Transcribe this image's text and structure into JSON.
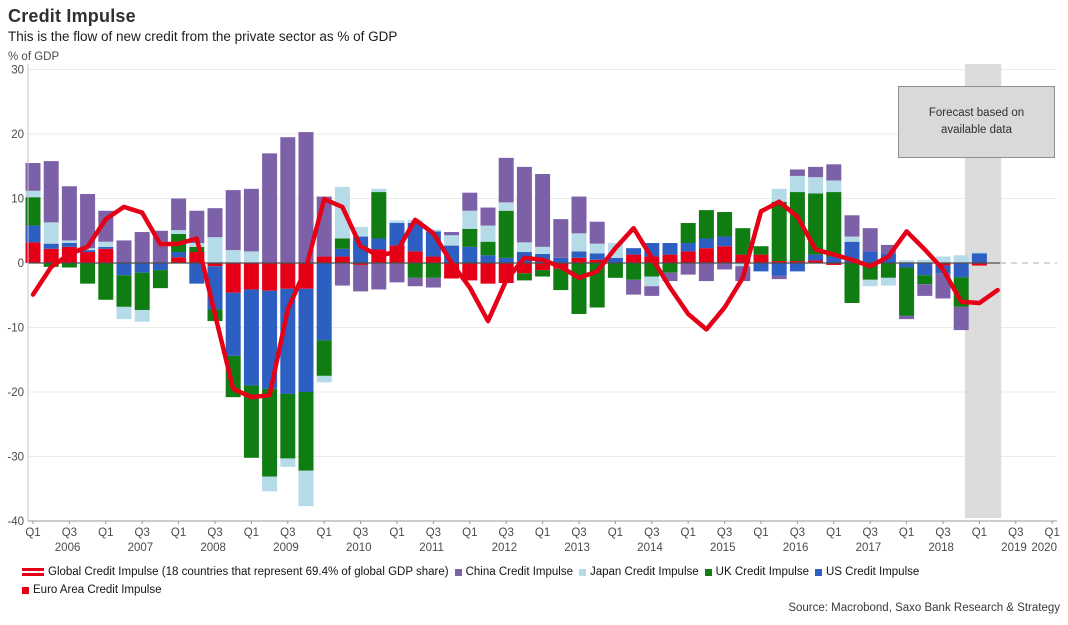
{
  "header": {
    "title": "Credit Impulse",
    "subtitle": "This is the flow of new credit from the private sector as % of GDP"
  },
  "y_axis": {
    "label": "% of GDP",
    "ticks": [
      30,
      20,
      10,
      0,
      -10,
      -20,
      -30,
      -40
    ],
    "min": -40,
    "max": 31
  },
  "x_axis": {
    "quarter_tick_labels": [
      "Q1",
      "Q3"
    ],
    "years": [
      "2006",
      "2007",
      "2008",
      "2009",
      "2010",
      "2011",
      "2012",
      "2013",
      "2014",
      "2015",
      "2016",
      "2017",
      "2018",
      "2019",
      "2020"
    ]
  },
  "forecast": {
    "line1": "Forecast based on",
    "line2": "available data",
    "band_start_index": 51.2,
    "band_end_index": 53.2
  },
  "legend": {
    "row1": [
      {
        "swatch": "line",
        "color": "#e60017",
        "label": "Global Credit Impulse (18 countries that represent 69.4% of global GDP share)"
      },
      {
        "swatch": "square",
        "color": "#7d61a8",
        "label": "China Credit Impulse"
      },
      {
        "swatch": "square",
        "color": "#b5dbe8",
        "label": "Japan Credit Impulse"
      },
      {
        "swatch": "square",
        "color": "#0f7d12",
        "label": "UK Credit Impulse"
      },
      {
        "swatch": "square",
        "color": "#2d5fc2",
        "label": "US Credit Impulse"
      }
    ],
    "row2": [
      {
        "swatch": "square",
        "color": "#e60017",
        "label": "Euro Area Credit Impulse"
      }
    ]
  },
  "source": "Source: Macrobond, Saxo Bank Research & Strategy",
  "chart_data": {
    "type": "stacked-bar+line",
    "title": "Credit Impulse",
    "xlabel": "",
    "ylabel": "% of GDP",
    "ylim": [
      -40,
      31
    ],
    "grid": true,
    "legend_position": "bottom",
    "categories": [
      "Q1 2006",
      "Q2 2006",
      "Q3 2006",
      "Q4 2006",
      "Q1 2007",
      "Q2 2007",
      "Q3 2007",
      "Q4 2007",
      "Q1 2008",
      "Q2 2008",
      "Q3 2008",
      "Q4 2008",
      "Q1 2009",
      "Q2 2009",
      "Q3 2009",
      "Q4 2009",
      "Q1 2010",
      "Q2 2010",
      "Q3 2010",
      "Q4 2010",
      "Q1 2011",
      "Q2 2011",
      "Q3 2011",
      "Q4 2011",
      "Q1 2012",
      "Q2 2012",
      "Q3 2012",
      "Q4 2012",
      "Q1 2013",
      "Q2 2013",
      "Q3 2013",
      "Q4 2013",
      "Q1 2014",
      "Q2 2014",
      "Q3 2014",
      "Q4 2014",
      "Q1 2015",
      "Q2 2015",
      "Q3 2015",
      "Q4 2015",
      "Q1 2016",
      "Q2 2016",
      "Q3 2016",
      "Q4 2016",
      "Q1 2017",
      "Q2 2017",
      "Q3 2017",
      "Q4 2017",
      "Q1 2018",
      "Q2 2018",
      "Q3 2018",
      "Q4 2018",
      "Q1 2019",
      "Q2 2019"
    ],
    "bar_series": [
      {
        "name": "Euro Area Credit Impulse",
        "color": "#e60017",
        "values": [
          3.2,
          2.2,
          2.5,
          1.7,
          2.2,
          0,
          0,
          0,
          0.9,
          1.7,
          -0.5,
          -4.6,
          -4.1,
          -4.3,
          -4,
          -4,
          1,
          1,
          -0.3,
          2.1,
          2.7,
          1.8,
          1,
          -2.4,
          -2.7,
          -3.2,
          -3.1,
          -1.6,
          -1.1,
          -0.9,
          0.8,
          0.5,
          0,
          1.3,
          1,
          1.3,
          1.8,
          2.3,
          2.6,
          1.3,
          1.3,
          0.3,
          0.3,
          0.4,
          -0.3,
          0,
          0,
          0,
          0,
          0,
          -0.4,
          0,
          -0.4,
          null
        ]
      },
      {
        "name": "US Credit Impulse",
        "color": "#2d5fc2",
        "values": [
          2.6,
          0.8,
          0.6,
          0.3,
          0.3,
          -1.9,
          -1.5,
          -1.1,
          0.8,
          -3.2,
          -6.7,
          -9.8,
          -14.9,
          -15.2,
          -16.3,
          -16,
          -12,
          1.2,
          4.1,
          1.7,
          3.5,
          4.4,
          3.9,
          2.7,
          2.5,
          1.2,
          0.8,
          1.7,
          1.4,
          0.8,
          1,
          1,
          0.8,
          1,
          2.1,
          1.8,
          1.3,
          1.5,
          1.5,
          0,
          -1.3,
          -2,
          -1.3,
          0.9,
          1,
          3.3,
          1.8,
          1.5,
          -0.7,
          -1.9,
          -1.2,
          -2.2,
          1.5,
          null
        ]
      },
      {
        "name": "UK Credit Impulse",
        "color": "#0f7d12",
        "values": [
          4.4,
          -0.6,
          -0.7,
          -3.2,
          -5.7,
          -4.9,
          -5.8,
          -2.8,
          2.8,
          0.8,
          -1.8,
          -6.4,
          -11.2,
          -13.6,
          -10,
          -12.2,
          -5.5,
          1.6,
          0,
          7.2,
          0,
          -2.3,
          -2.3,
          0,
          2.8,
          2.1,
          7.3,
          -1.1,
          -1,
          -3.3,
          -7.9,
          -6.9,
          -2.3,
          -2.6,
          -2.1,
          -1.5,
          3.1,
          4.4,
          3.8,
          4.1,
          1.3,
          9.2,
          10.7,
          9.5,
          10,
          -6.2,
          -2.6,
          -2.3,
          -7.5,
          -1.4,
          0,
          -4.6,
          0,
          null
        ]
      },
      {
        "name": "Japan Credit Impulse",
        "color": "#b5dbe8",
        "values": [
          1,
          3.3,
          0.4,
          0.3,
          0.8,
          -1.9,
          -1.8,
          0,
          0.6,
          0.6,
          4,
          2,
          1.8,
          -2.3,
          -1.3,
          -5.5,
          -1,
          8,
          1.5,
          0.5,
          0.4,
          0.5,
          0.3,
          1.6,
          2.8,
          2.5,
          1.3,
          1.5,
          1.1,
          0,
          2.8,
          1.5,
          2.3,
          0,
          -1.5,
          0,
          0,
          0,
          0,
          -0.5,
          0,
          2,
          2.5,
          2.5,
          1.8,
          0.8,
          -1,
          -1.2,
          0.4,
          0.5,
          1,
          1.2,
          0.2,
          null
        ]
      },
      {
        "name": "China Credit Impulse",
        "color": "#7d61a8",
        "values": [
          4.3,
          9.5,
          8.4,
          8.4,
          4.8,
          3.5,
          4.8,
          5,
          4.9,
          5,
          4.5,
          9.3,
          9.7,
          17,
          19.5,
          20.3,
          9.3,
          -3.5,
          -4.1,
          -4.1,
          -3,
          -1.3,
          -1.5,
          0.5,
          2.8,
          2.8,
          6.9,
          11.7,
          11.3,
          6,
          5.7,
          3.4,
          0,
          -2.3,
          -1.5,
          -1.3,
          -1.8,
          -2.8,
          -1,
          -2.3,
          0,
          -0.5,
          1,
          1.6,
          2.5,
          3.3,
          3.6,
          1.3,
          -0.5,
          -1.8,
          -3.9,
          -3.6,
          0,
          null
        ]
      }
    ],
    "line_series": {
      "name": "Global Credit Impulse (18 countries that represent 69.4% of global GDP share)",
      "color": "#e60017",
      "values": [
        -4.9,
        -0.6,
        1.4,
        2.5,
        6.8,
        8.7,
        7.8,
        2.9,
        3,
        3.8,
        -8,
        -19.5,
        -20.8,
        -20.5,
        -7.2,
        -0.8,
        9.9,
        8.7,
        2.6,
        1.1,
        1.8,
        6.7,
        4.6,
        0,
        -3.8,
        -9,
        -2.7,
        0.8,
        0.5,
        -0.6,
        -2.3,
        -1.3,
        2.3,
        5.4,
        0.8,
        -3.8,
        -7.9,
        -10.3,
        -6.9,
        -2.3,
        8,
        9.5,
        7.2,
        2.1,
        1.3,
        0.5,
        -0.5,
        1,
        4.9,
        2.1,
        -1,
        -6,
        -6.2,
        -4.2
      ]
    }
  }
}
